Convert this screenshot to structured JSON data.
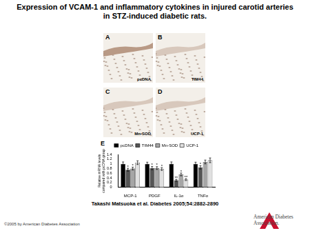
{
  "header": {
    "title": "Expression of VCAM-1 and inflammatory cytokines in injured carotid arteries in STZ-induced diabetic rats."
  },
  "panels": [
    {
      "letter": "A",
      "caption": "pcDNA"
    },
    {
      "letter": "B",
      "caption": "TIM44"
    },
    {
      "letter": "C",
      "caption": "Mn-SOD"
    },
    {
      "letter": "D",
      "caption": "UCP-1"
    }
  ],
  "chart_panel": "E",
  "chart_data": {
    "type": "bar",
    "y_label": [
      "Relative mRNA levels",
      "compared with pcDNA group"
    ],
    "categories": [
      "MCP-1",
      "PDGF",
      "IL-1α",
      "TNFα"
    ],
    "series": [
      {
        "name": "pcDNA",
        "color": "#000000",
        "values": [
          1.0,
          1.0,
          1.0,
          1.0
        ],
        "errors": [
          0.08,
          0.07,
          0.08,
          0.07
        ]
      },
      {
        "name": "TIM44",
        "color": "#555555",
        "values": [
          0.75,
          0.82,
          0.3,
          0.85
        ],
        "errors": [
          0.06,
          0.07,
          0.04,
          0.07
        ]
      },
      {
        "name": "Mn-SOD",
        "color": "#a6a6a6",
        "values": [
          0.8,
          0.82,
          0.55,
          1.08
        ],
        "errors": [
          0.06,
          0.06,
          0.06,
          0.08
        ]
      },
      {
        "name": "UCP-1",
        "color": "#e0e0e0",
        "values": [
          1.05,
          0.78,
          0.33,
          1.15
        ],
        "errors": [
          0.08,
          0.06,
          0.04,
          0.1
        ]
      }
    ],
    "annotations": [
      {
        "category": "MCP-1",
        "series": "TIM44",
        "text": "*"
      },
      {
        "category": "MCP-1",
        "series": "Mn-SOD",
        "text": "*"
      },
      {
        "category": "PDGF",
        "series": "TIM44",
        "text": "*"
      },
      {
        "category": "PDGF",
        "series": "Mn-SOD",
        "text": "*"
      },
      {
        "category": "PDGF",
        "series": "UCP-1",
        "text": "*"
      },
      {
        "category": "IL-1α",
        "series": "TIM44",
        "text": "**"
      },
      {
        "category": "IL-1α",
        "series": "Mn-SOD",
        "text": "*"
      },
      {
        "category": "IL-1α",
        "series": "UCP-1",
        "text": "**"
      },
      {
        "category": "TNFα",
        "series": "TIM44",
        "text": "*"
      }
    ],
    "ylim": [
      0,
      1.4
    ],
    "yticks": [
      0,
      0.2,
      0.4,
      0.6,
      0.8,
      1,
      1.2,
      1.4
    ],
    "legend": "top",
    "grid": false
  },
  "footer": {
    "citation": "Takashi Matsuoka et al. Diabetes 2005;54:2882-2890",
    "copyright": "©2005 by American Diabetes Association",
    "logo_lines": [
      "American Diabetes",
      "Association."
    ]
  }
}
